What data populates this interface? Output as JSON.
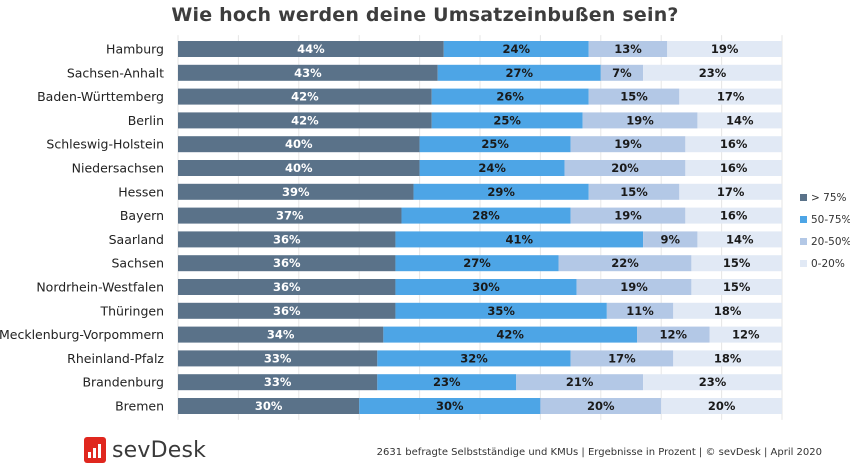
{
  "chart_data": {
    "type": "bar",
    "orientation": "horizontal",
    "stacked": true,
    "title": "Wie hoch werden deine Umsatzeinbußen sein?",
    "categories": [
      "Hamburg",
      "Sachsen-Anhalt",
      "Baden-Württemberg",
      "Berlin",
      "Schleswig-Holstein",
      "Niedersachsen",
      "Hessen",
      "Bayern",
      "Saarland",
      "Sachsen",
      "Nordrhein-Westfalen",
      "Thüringen",
      "Mecklenburg-Vorpommern",
      "Rheinland-Pfalz",
      "Brandenburg",
      "Bremen"
    ],
    "series": [
      {
        "name": "> 75%",
        "color": "#5a7289",
        "label_color": "#ffffff",
        "values": [
          44,
          43,
          42,
          42,
          40,
          40,
          39,
          37,
          36,
          36,
          36,
          36,
          34,
          33,
          33,
          30
        ]
      },
      {
        "name": "50-75%",
        "color": "#4da5e6",
        "label_color": "#1a1a1a",
        "values": [
          24,
          27,
          26,
          25,
          25,
          24,
          29,
          28,
          41,
          27,
          30,
          35,
          42,
          32,
          23,
          30
        ]
      },
      {
        "name": "20-50%",
        "color": "#b3c8e6",
        "label_color": "#1a1a1a",
        "values": [
          13,
          7,
          15,
          19,
          19,
          20,
          15,
          19,
          9,
          22,
          19,
          11,
          12,
          17,
          21,
          20
        ]
      },
      {
        "name": "0-20%",
        "color": "#e1e9f5",
        "label_color": "#1a1a1a",
        "values": [
          19,
          23,
          17,
          14,
          16,
          16,
          17,
          16,
          14,
          15,
          15,
          18,
          12,
          18,
          23,
          20
        ]
      }
    ],
    "value_suffix": "%",
    "xlim": [
      0,
      100
    ],
    "grid": true,
    "legend_position": "right"
  },
  "footer": {
    "brand": "sevDesk",
    "note": "2631 befragte Selbstständige und KMUs | Ergebnisse in Prozent | © sevDesk | April 2020"
  }
}
